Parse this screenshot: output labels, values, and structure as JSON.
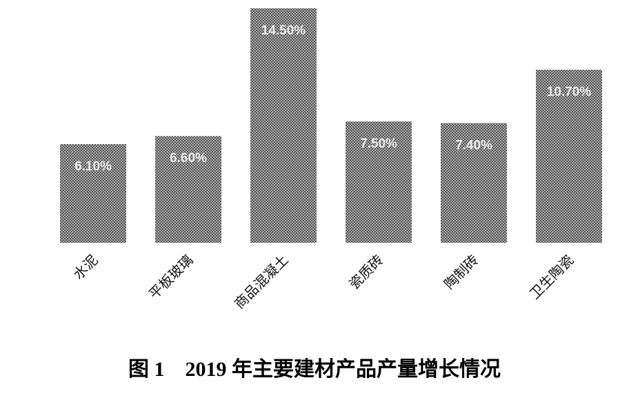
{
  "chart_data": {
    "type": "bar",
    "title": "图 1　2019 年主要建材产品产量增长情况",
    "categories": [
      "水泥",
      "平板玻璃",
      "商品混凝土",
      "瓷质砖",
      "陶制砖",
      "卫生陶瓷"
    ],
    "values": [
      6.1,
      6.6,
      14.5,
      7.5,
      7.4,
      10.7
    ],
    "value_labels": [
      "6.10%",
      "6.60%",
      "14.50%",
      "7.50%",
      "7.40%",
      "10.70%"
    ],
    "color": "#555555"
  }
}
